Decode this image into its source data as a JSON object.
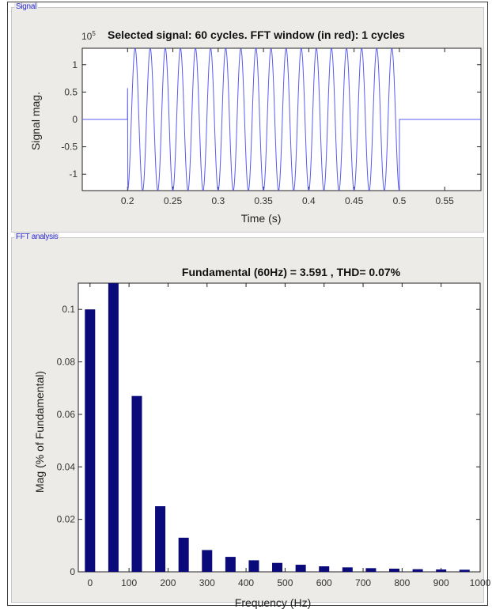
{
  "signal_panel": {
    "label": "Signal",
    "chart_data": {
      "type": "line",
      "title": "Selected signal: 60 cycles. FFT window (in red): 1 cycles",
      "xlabel": "Time (s)",
      "ylabel": "Signal mag.",
      "y_exponent_label": "10",
      "y_exponent_sup": "5",
      "xlim": [
        0.15,
        0.59
      ],
      "ylim": [
        -1.3,
        1.3
      ],
      "x_ticks": [
        0.2,
        0.25,
        0.3,
        0.35,
        0.4,
        0.45,
        0.5,
        0.55
      ],
      "x_tick_labels": [
        "0.2",
        "0.25",
        "0.3",
        "0.35",
        "0.4",
        "0.45",
        "0.5",
        "0.55"
      ],
      "y_ticks": [
        1,
        0.5,
        0,
        -0.5,
        -1
      ],
      "y_tick_labels": [
        "1",
        "0.5",
        "0",
        "-0.5",
        "-1"
      ],
      "signal": {
        "on_time": 0.2,
        "off_time": 0.5,
        "frequency_hz": 60,
        "amplitude": 1.3,
        "initial_spike": 0.65
      },
      "color": "#5a5af0"
    }
  },
  "fft_panel": {
    "label": "FFT analysis",
    "chart_data": {
      "type": "bar",
      "title": "Fundamental (60Hz) = 3.591 , THD= 0.07%",
      "xlabel": "Frequency (Hz)",
      "ylabel": "Mag (% of Fundamental)",
      "xlim": [
        -30,
        1000
      ],
      "ylim": [
        0,
        0.11
      ],
      "x": [
        0,
        60,
        120,
        180,
        240,
        300,
        360,
        420,
        480,
        540,
        600,
        660,
        720,
        780,
        840,
        900,
        960
      ],
      "values": [
        0.1,
        0.11,
        0.067,
        0.025,
        0.013,
        0.0083,
        0.0057,
        0.0044,
        0.0034,
        0.0027,
        0.0021,
        0.0017,
        0.0014,
        0.0012,
        0.001,
        0.0009,
        0.0008
      ],
      "x_ticks": [
        0,
        100,
        200,
        300,
        400,
        500,
        600,
        700,
        800,
        900,
        1000
      ],
      "x_tick_labels": [
        "0",
        "100",
        "200",
        "300",
        "400",
        "500",
        "600",
        "700",
        "800",
        "900",
        "1000"
      ],
      "y_ticks": [
        0,
        0.02,
        0.04,
        0.06,
        0.08,
        0.1
      ],
      "y_tick_labels": [
        "0",
        "0.02",
        "0.04",
        "0.06",
        "0.08",
        "0.1"
      ],
      "color": "#0a0a7a"
    }
  }
}
